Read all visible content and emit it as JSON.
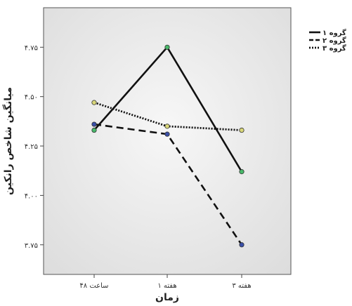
{
  "chart_data": {
    "type": "line",
    "categories": [
      "۴۸ ساعت",
      "۱ هفته",
      "۳ هفته"
    ],
    "xlabel": "زمان",
    "ylabel": "میانگین شاخص رانکین",
    "ylim": [
      3.6,
      4.95
    ],
    "yticks": [
      3.75,
      4.0,
      4.25,
      4.5,
      4.75
    ],
    "ytick_labels": [
      "۳.۷۵",
      "۴.۰۰",
      "۴.۲۵",
      "۴.۵۰",
      "۴.۷۵"
    ],
    "grid": false,
    "legend_position": "top-right",
    "series": [
      {
        "name": "گروه ۱",
        "values": [
          4.33,
          4.75,
          4.12
        ],
        "line_style": "solid",
        "marker_color": "#49b96a"
      },
      {
        "name": "گروه ۲",
        "values": [
          4.36,
          4.31,
          3.75
        ],
        "line_style": "dashed",
        "marker_color": "#3a4fa8"
      },
      {
        "name": "گروه ۳",
        "values": [
          4.47,
          4.35,
          4.33
        ],
        "line_style": "dotted",
        "marker_color": "#d9d77a"
      }
    ]
  }
}
